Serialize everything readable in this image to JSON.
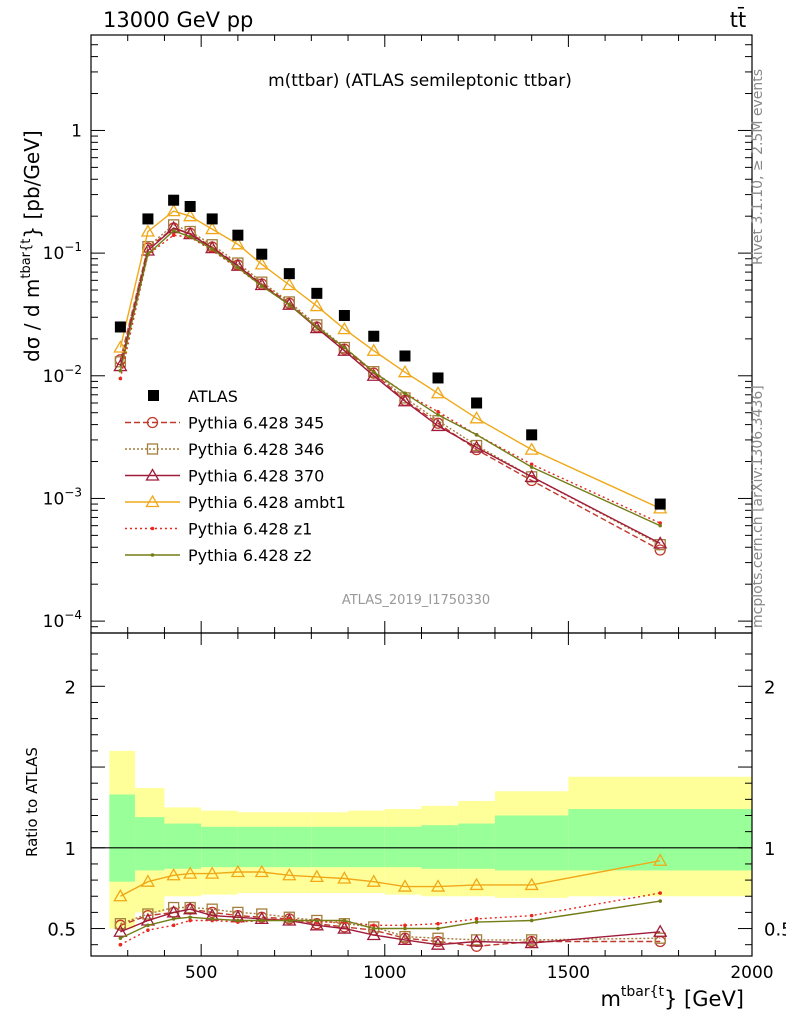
{
  "header": {
    "left": "13000 GeV pp",
    "right": "tt̄"
  },
  "side_labels": {
    "rivet": "Rivet 3.1.10, ≥ 2.5M events",
    "mcplots": "mcplots.cern.ch [arXiv:1306.3436]"
  },
  "watermark": "ATLAS_2019_I1750330",
  "chart_data": [
    {
      "type": "scatter",
      "title": "m(ttbar) (ATLAS semileptonic ttbar)",
      "ylabel_parts": {
        "main": "dσ / d m",
        "sup": "tbar{t",
        "tail": "} [pb/GeV]"
      },
      "yscale": "log",
      "ylim": [
        8e-05,
        6
      ],
      "yticks": [
        {
          "v": 0.0001,
          "base": "10",
          "exp": "−4"
        },
        {
          "v": 0.001,
          "base": "10",
          "exp": "−3"
        },
        {
          "v": 0.01,
          "base": "10",
          "exp": "−2"
        },
        {
          "v": 0.1,
          "base": "10",
          "exp": "−1"
        },
        {
          "v": 1,
          "base": "1",
          "exp": ""
        }
      ],
      "xlim": [
        200,
        2000
      ],
      "x": [
        280,
        355,
        425,
        470,
        530,
        600,
        665,
        740,
        815,
        890,
        970,
        1055,
        1145,
        1250,
        1400,
        1750
      ],
      "data": {
        "name": "ATLAS",
        "values": [
          0.025,
          0.19,
          0.27,
          0.24,
          0.19,
          0.14,
          0.098,
          0.068,
          0.047,
          0.031,
          0.021,
          0.0145,
          0.0096,
          0.006,
          0.0033,
          0.0009
        ]
      },
      "series": [
        {
          "name": "Pythia 6.428 345",
          "color": "#c0392b",
          "dash": "6,3",
          "marker": "circle",
          "values": [
            0.0135,
            0.11,
            0.16,
            0.145,
            0.112,
            0.08,
            0.056,
            0.039,
            0.025,
            0.0165,
            0.0105,
            0.0063,
            0.0041,
            0.0025,
            0.0014,
            0.00038
          ]
        },
        {
          "name": "Pythia 6.428 346",
          "color": "#a47e3c",
          "dash": "2,2",
          "marker": "square",
          "values": [
            0.013,
            0.113,
            0.17,
            0.15,
            0.117,
            0.083,
            0.058,
            0.04,
            0.026,
            0.017,
            0.0108,
            0.0066,
            0.0043,
            0.0027,
            0.0015,
            0.00042
          ]
        },
        {
          "name": "Pythia 6.428 370",
          "color": "#a01b3a",
          "dash": "",
          "marker": "triangle",
          "values": [
            0.012,
            0.105,
            0.16,
            0.143,
            0.11,
            0.079,
            0.055,
            0.038,
            0.0245,
            0.016,
            0.01,
            0.0062,
            0.0039,
            0.0026,
            0.0015,
            0.00043
          ]
        },
        {
          "name": "Pythia 6.428 ambt1",
          "color": "#f0a818",
          "dash": "",
          "marker": "triangle",
          "values": [
            0.017,
            0.15,
            0.22,
            0.2,
            0.157,
            0.118,
            0.081,
            0.055,
            0.037,
            0.024,
            0.016,
            0.0107,
            0.0072,
            0.0045,
            0.0025,
            0.00083
          ]
        },
        {
          "name": "Pythia 6.428 z1",
          "color": "#e8281e",
          "dash": "2,3",
          "marker": "dot",
          "values": [
            0.0095,
            0.097,
            0.14,
            0.135,
            0.105,
            0.075,
            0.054,
            0.038,
            0.025,
            0.017,
            0.0108,
            0.0072,
            0.0051,
            0.0033,
            0.0019,
            0.00063
          ]
        },
        {
          "name": "Pythia 6.428 z2",
          "color": "#737d16",
          "dash": "",
          "marker": "dot",
          "values": [
            0.011,
            0.098,
            0.152,
            0.136,
            0.108,
            0.076,
            0.054,
            0.038,
            0.025,
            0.017,
            0.0107,
            0.0072,
            0.0048,
            0.0033,
            0.0018,
            0.0006
          ]
        }
      ]
    },
    {
      "type": "line",
      "ylabel": "Ratio to ATLAS",
      "xlabel_parts": {
        "main": "m",
        "sup": "tbar{t",
        "tail": "} [GeV]"
      },
      "ylim": [
        0.33,
        2.33
      ],
      "yticks": [
        0.5,
        1,
        2
      ],
      "xticks": [
        500,
        1000,
        1500,
        2000
      ],
      "xlim": [
        200,
        2000
      ],
      "bins": [
        [
          250,
          320
        ],
        [
          320,
          400
        ],
        [
          400,
          500
        ],
        [
          500,
          600
        ],
        [
          600,
          700
        ],
        [
          700,
          800
        ],
        [
          800,
          900
        ],
        [
          900,
          1000
        ],
        [
          1000,
          1100
        ],
        [
          1100,
          1200
        ],
        [
          1200,
          1300
        ],
        [
          1300,
          1500
        ],
        [
          1500,
          2000
        ]
      ],
      "band_outer": [
        [
          0.5,
          1.6
        ],
        [
          0.6,
          1.37
        ],
        [
          0.7,
          1.25
        ],
        [
          0.71,
          1.23
        ],
        [
          0.72,
          1.22
        ],
        [
          0.72,
          1.22
        ],
        [
          0.72,
          1.22
        ],
        [
          0.72,
          1.23
        ],
        [
          0.71,
          1.24
        ],
        [
          0.7,
          1.26
        ],
        [
          0.7,
          1.29
        ],
        [
          0.69,
          1.35
        ],
        [
          0.7,
          1.44
        ]
      ],
      "band_inner": [
        [
          0.79,
          1.33
        ],
        [
          0.86,
          1.19
        ],
        [
          0.87,
          1.15
        ],
        [
          0.88,
          1.13
        ],
        [
          0.88,
          1.13
        ],
        [
          0.88,
          1.13
        ],
        [
          0.88,
          1.13
        ],
        [
          0.88,
          1.13
        ],
        [
          0.88,
          1.13
        ],
        [
          0.87,
          1.14
        ],
        [
          0.87,
          1.15
        ],
        [
          0.86,
          1.2
        ],
        [
          0.86,
          1.24
        ]
      ],
      "band_colors": {
        "outer": "#ffff99",
        "inner": "#99ff99"
      },
      "x": [
        280,
        355,
        425,
        470,
        530,
        600,
        665,
        740,
        815,
        890,
        970,
        1055,
        1145,
        1250,
        1400,
        1750
      ],
      "series": [
        {
          "name": "Pythia 6.428 345",
          "values": [
            0.52,
            0.58,
            0.6,
            0.62,
            0.6,
            0.58,
            0.57,
            0.56,
            0.53,
            0.51,
            0.49,
            0.44,
            0.42,
            0.39,
            0.42,
            0.42
          ]
        },
        {
          "name": "Pythia 6.428 346",
          "values": [
            0.53,
            0.59,
            0.63,
            0.63,
            0.62,
            0.6,
            0.59,
            0.57,
            0.55,
            0.53,
            0.51,
            0.45,
            0.44,
            0.43,
            0.43,
            0.44
          ]
        },
        {
          "name": "Pythia 6.428 370",
          "values": [
            0.48,
            0.55,
            0.6,
            0.62,
            0.58,
            0.57,
            0.56,
            0.55,
            0.52,
            0.5,
            0.46,
            0.43,
            0.4,
            0.42,
            0.41,
            0.48
          ]
        },
        {
          "name": "Pythia 6.428 ambt1",
          "values": [
            0.7,
            0.79,
            0.83,
            0.84,
            0.84,
            0.85,
            0.85,
            0.83,
            0.82,
            0.81,
            0.79,
            0.76,
            0.76,
            0.77,
            0.77,
            0.92
          ]
        },
        {
          "name": "Pythia 6.428 z1",
          "values": [
            0.4,
            0.49,
            0.52,
            0.55,
            0.55,
            0.54,
            0.55,
            0.56,
            0.54,
            0.54,
            0.52,
            0.52,
            0.53,
            0.56,
            0.58,
            0.72
          ]
        },
        {
          "name": "Pythia 6.428 z2",
          "values": [
            0.44,
            0.52,
            0.56,
            0.57,
            0.56,
            0.55,
            0.55,
            0.55,
            0.55,
            0.55,
            0.5,
            0.5,
            0.5,
            0.54,
            0.55,
            0.67
          ]
        }
      ]
    }
  ]
}
